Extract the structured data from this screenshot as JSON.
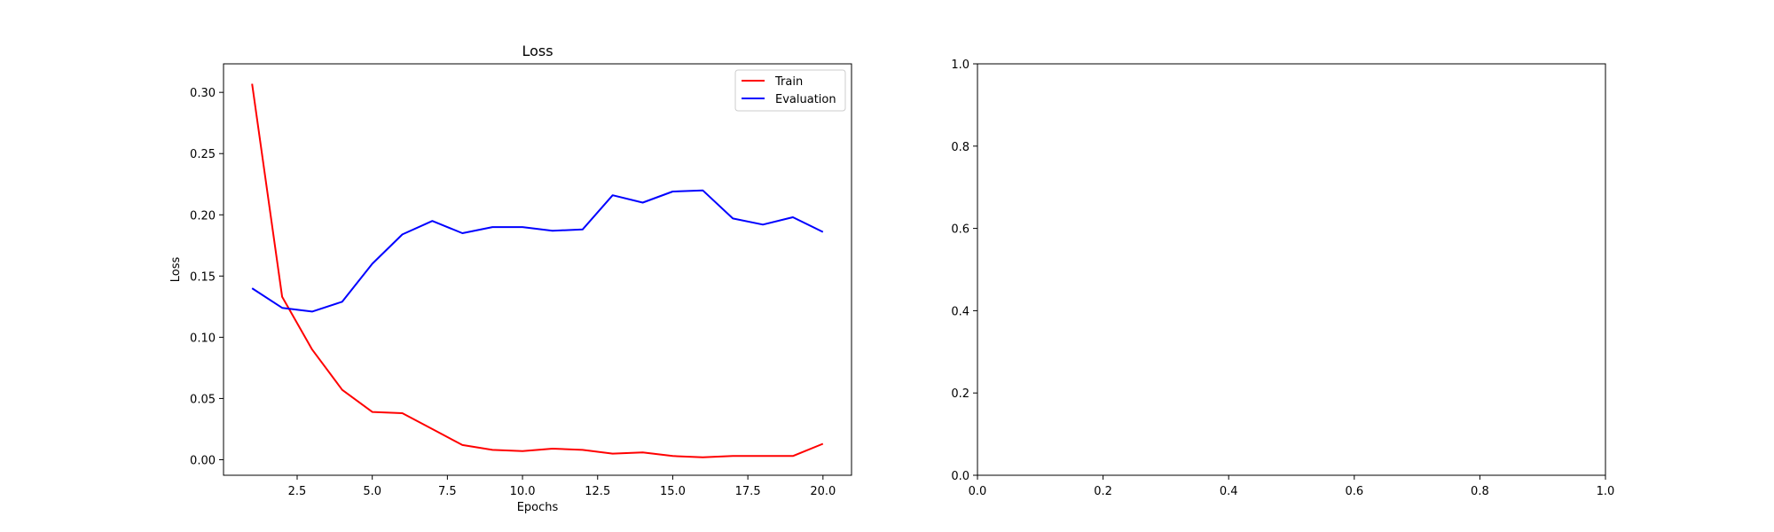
{
  "chart_data": [
    {
      "type": "line",
      "title": "Loss",
      "xlabel": "Epochs",
      "ylabel": "Loss",
      "xlim": [
        0.05,
        20.95
      ],
      "ylim": [
        -0.0127,
        0.3233
      ],
      "xticks": [
        2.5,
        5.0,
        7.5,
        10.0,
        12.5,
        15.0,
        17.5,
        20.0
      ],
      "xtick_labels": [
        "2.5",
        "5.0",
        "7.5",
        "10.0",
        "12.5",
        "15.0",
        "17.5",
        "20.0"
      ],
      "yticks": [
        0.0,
        0.05,
        0.1,
        0.15,
        0.2,
        0.25,
        0.3
      ],
      "ytick_labels": [
        "0.00",
        "0.05",
        "0.10",
        "0.15",
        "0.20",
        "0.25",
        "0.30"
      ],
      "grid": false,
      "legend": {
        "position": "top-right"
      },
      "x": [
        1,
        2,
        3,
        4,
        5,
        6,
        7,
        8,
        9,
        10,
        11,
        12,
        13,
        14,
        15,
        16,
        17,
        18,
        19,
        20
      ],
      "series": [
        {
          "name": "Train",
          "color": "#ff0000",
          "values": [
            0.307,
            0.133,
            0.09,
            0.057,
            0.039,
            0.038,
            0.025,
            0.012,
            0.008,
            0.007,
            0.009,
            0.008,
            0.005,
            0.006,
            0.003,
            0.002,
            0.003,
            0.003,
            0.003,
            0.013
          ]
        },
        {
          "name": "Evaluation",
          "color": "#0000ff",
          "values": [
            0.14,
            0.124,
            0.121,
            0.129,
            0.16,
            0.184,
            0.195,
            0.185,
            0.19,
            0.19,
            0.187,
            0.188,
            0.216,
            0.21,
            0.219,
            0.22,
            0.197,
            0.192,
            0.198,
            0.186
          ]
        }
      ]
    },
    {
      "type": "line",
      "title": "",
      "xlabel": "",
      "ylabel": "",
      "xlim": [
        0.0,
        1.0
      ],
      "ylim": [
        0.0,
        1.0
      ],
      "xticks": [
        0.0,
        0.2,
        0.4,
        0.6,
        0.8,
        1.0
      ],
      "xtick_labels": [
        "0.0",
        "0.2",
        "0.4",
        "0.6",
        "0.8",
        "1.0"
      ],
      "yticks": [
        0.0,
        0.2,
        0.4,
        0.6,
        0.8,
        1.0
      ],
      "ytick_labels": [
        "0.0",
        "0.2",
        "0.4",
        "0.6",
        "0.8",
        "1.0"
      ],
      "grid": false,
      "series": []
    }
  ]
}
